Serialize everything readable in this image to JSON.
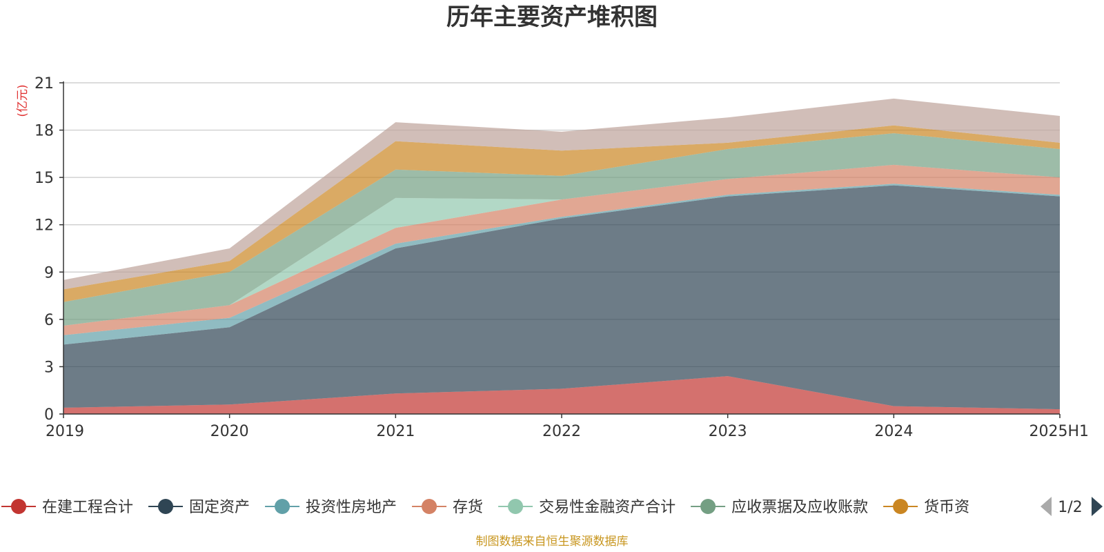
{
  "chart_data": {
    "type": "area",
    "stacked": true,
    "title": "历年主要资产堆积图",
    "ylabel": "(亿元)",
    "xlabel": "",
    "categories": [
      "2019",
      "2020",
      "2021",
      "2022",
      "2023",
      "2024",
      "2025H1"
    ],
    "ylim": [
      0,
      21
    ],
    "yticks": [
      0,
      3,
      6,
      9,
      12,
      15,
      18,
      21
    ],
    "grid": true,
    "legend_position": "bottom",
    "legend_page": "1/2",
    "series": [
      {
        "name": "在建工程合计",
        "color": "#c23531",
        "values": [
          0.4,
          0.6,
          1.3,
          1.6,
          2.4,
          0.5,
          0.3
        ]
      },
      {
        "name": "固定资产",
        "color": "#2f4554",
        "values": [
          4.0,
          4.9,
          9.2,
          10.8,
          11.4,
          14.0,
          13.5
        ]
      },
      {
        "name": "投资性房地产",
        "color": "#61a0a8",
        "values": [
          0.6,
          0.6,
          0.3,
          0.1,
          0.1,
          0.1,
          0.1
        ]
      },
      {
        "name": "存货",
        "color": "#d48265",
        "values": [
          0.6,
          0.8,
          1.0,
          1.1,
          1.0,
          1.2,
          1.1
        ]
      },
      {
        "name": "交易性金融资产合计",
        "color": "#91c7ae",
        "values": [
          0.0,
          0.0,
          1.9,
          0.0,
          0.0,
          0.0,
          0.0
        ]
      },
      {
        "name": "应收票据及应收账款",
        "color": "#749f83",
        "values": [
          1.5,
          2.1,
          1.8,
          1.5,
          1.9,
          2.0,
          1.8
        ]
      },
      {
        "name": "货币资",
        "color": "#ca8622",
        "values": [
          0.8,
          0.7,
          1.8,
          1.6,
          0.4,
          0.5,
          0.4
        ]
      },
      {
        "name": "",
        "color": "#bda29a",
        "values": [
          0.6,
          0.8,
          1.2,
          1.2,
          1.6,
          1.7,
          1.7
        ]
      }
    ]
  },
  "source": "制图数据来自恒生聚源数据库"
}
